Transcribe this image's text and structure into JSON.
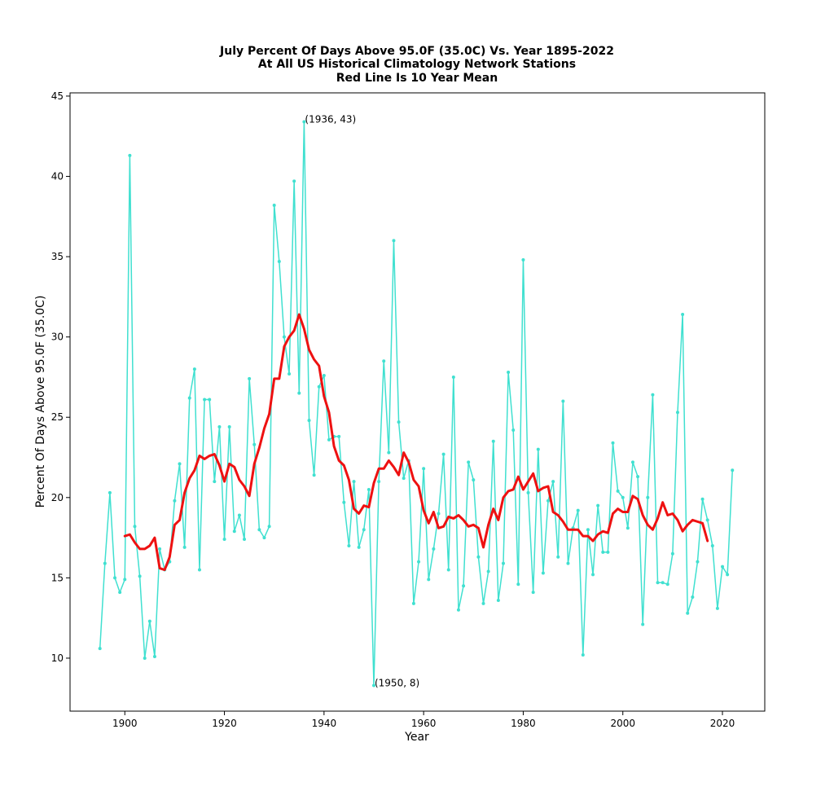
{
  "chart_data": {
    "type": "line",
    "title_lines": [
      "July Percent Of Days Above 95.0F (35.0C) Vs. Year 1895-2022",
      "At All US Historical Climatology Network Stations",
      "Red Line Is 10 Year Mean"
    ],
    "xlabel": "Year",
    "ylabel": "Percent Of Days Above 95.0F (35.0C)",
    "xlim": [
      1889,
      2028.5
    ],
    "ylim": [
      6.7,
      45.2
    ],
    "xticks": [
      1900,
      1920,
      1940,
      1960,
      1980,
      2000,
      2020
    ],
    "yticks": [
      10,
      15,
      20,
      25,
      30,
      35,
      40,
      45
    ],
    "grid": false,
    "series": [
      {
        "style": "line-with-markers",
        "color": "#40e0d0",
        "x_start": 1895,
        "values": [
          10.6,
          15.9,
          20.3,
          15.0,
          14.1,
          14.9,
          41.3,
          18.2,
          15.1,
          10.0,
          12.3,
          10.1,
          16.8,
          15.5,
          16.0,
          19.8,
          22.1,
          16.9,
          26.2,
          28.0,
          15.5,
          26.1,
          26.1,
          21.0,
          24.4,
          17.4,
          24.4,
          17.9,
          18.9,
          17.4,
          27.4,
          23.3,
          18.0,
          17.5,
          18.2,
          38.2,
          34.7,
          30.0,
          27.7,
          39.7,
          26.5,
          43.4,
          24.8,
          21.4,
          26.9,
          27.6,
          23.6,
          23.8,
          23.8,
          19.7,
          17.0,
          21.0,
          16.9,
          18.0,
          20.5,
          8.3,
          21.0,
          28.5,
          22.8,
          36.0,
          24.7,
          21.2,
          22.3,
          13.4,
          16.0,
          21.8,
          14.9,
          16.8,
          19.0,
          22.7,
          15.5,
          27.5,
          13.0,
          14.5,
          22.2,
          21.1,
          16.3,
          13.4,
          15.4,
          23.5,
          13.6,
          15.9,
          27.8,
          24.2,
          14.6,
          34.8,
          20.3,
          14.1,
          23.0,
          15.3,
          19.8,
          21.0,
          16.3,
          26.0,
          15.9,
          18.1,
          19.2,
          10.2,
          18.0,
          15.2,
          19.5,
          16.6,
          16.6,
          23.4,
          20.4,
          20.0,
          18.1,
          22.2,
          21.3,
          12.1,
          20.0,
          26.4,
          14.7,
          14.7,
          14.6,
          16.5,
          25.3,
          31.4,
          12.8,
          13.8,
          16.0,
          19.9,
          18.6,
          17.0,
          13.1,
          15.7,
          15.2,
          21.7
        ]
      },
      {
        "name": "10 Year Mean",
        "style": "line",
        "color": "#ee1111",
        "x_start": 1900,
        "values": [
          17.6,
          17.7,
          17.2,
          16.8,
          16.8,
          17.0,
          17.5,
          15.6,
          15.5,
          16.3,
          18.3,
          18.6,
          20.3,
          21.2,
          21.7,
          22.6,
          22.4,
          22.6,
          22.7,
          22.0,
          21.0,
          22.1,
          21.9,
          21.1,
          20.7,
          20.1,
          22.1,
          23.1,
          24.3,
          25.2,
          27.4,
          27.4,
          29.4,
          30.0,
          30.4,
          31.4,
          30.5,
          29.2,
          28.6,
          28.2,
          26.3,
          25.3,
          23.2,
          22.3,
          22.0,
          21.1,
          19.3,
          19.0,
          19.5,
          19.4,
          20.9,
          21.8,
          21.8,
          22.3,
          21.9,
          21.4,
          22.8,
          22.2,
          21.1,
          20.7,
          19.2,
          18.4,
          19.1,
          18.1,
          18.2,
          18.8,
          18.7,
          18.9,
          18.6,
          18.2,
          18.3,
          18.1,
          16.9,
          18.3,
          19.3,
          18.6,
          20.0,
          20.4,
          20.5,
          21.3,
          20.5,
          21.0,
          21.5,
          20.4,
          20.6,
          20.7,
          19.1,
          18.9,
          18.5,
          18.0,
          18.0,
          18.0,
          17.6,
          17.6,
          17.3,
          17.7,
          17.9,
          17.8,
          19.0,
          19.3,
          19.1,
          19.1,
          20.1,
          19.9,
          18.9,
          18.3,
          18.0,
          18.7,
          19.7,
          18.9,
          19.0,
          18.6,
          17.9,
          18.3,
          18.6,
          18.5,
          18.4,
          17.3
        ]
      }
    ],
    "annotations": [
      {
        "text": "(1936, 43)",
        "x": 1936,
        "y": 43.4
      },
      {
        "text": "(1950, 8)",
        "x": 1950,
        "y": 8.3
      }
    ]
  }
}
